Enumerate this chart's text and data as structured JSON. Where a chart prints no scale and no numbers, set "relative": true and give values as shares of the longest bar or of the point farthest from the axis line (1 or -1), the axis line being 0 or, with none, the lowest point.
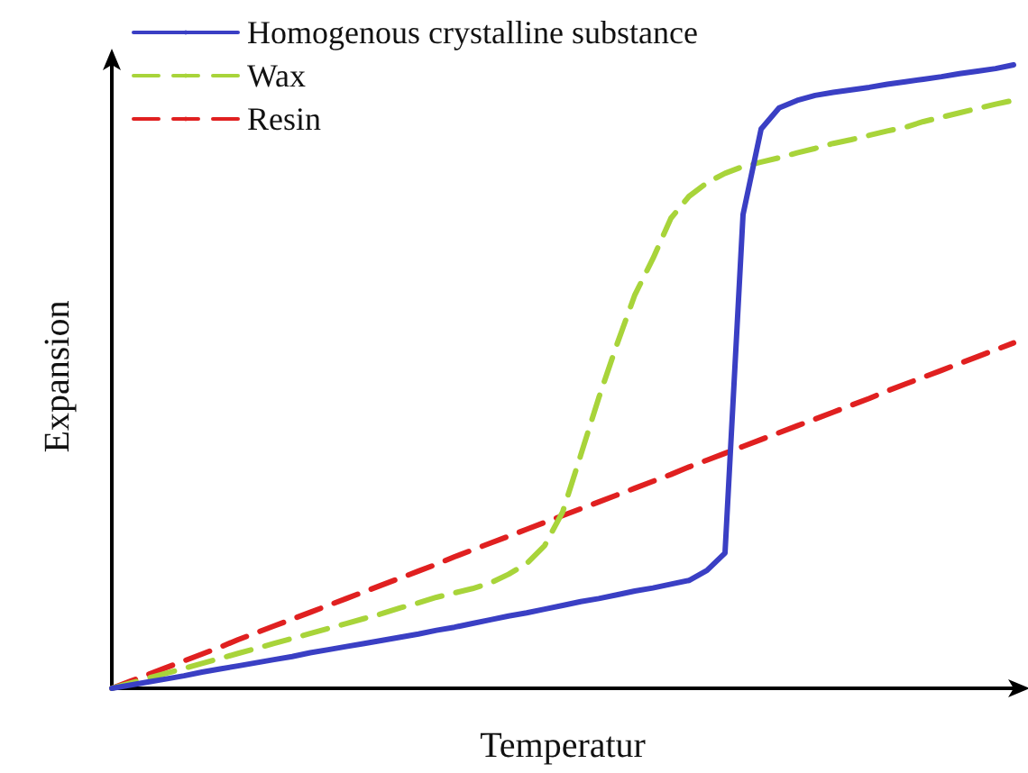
{
  "chart_data": {
    "type": "line",
    "relative": true,
    "xlabel": "Temperatur",
    "ylabel": "Expansion",
    "legend": "top left",
    "marker": "none",
    "grid": false,
    "categories": [
      null,
      null,
      null,
      null,
      null,
      null,
      null,
      null,
      null,
      null,
      null,
      null,
      null,
      null,
      null,
      null,
      null,
      null,
      null,
      null,
      null,
      null,
      null,
      null,
      null,
      null,
      null,
      null,
      null,
      null,
      null,
      null,
      null,
      null,
      null,
      null,
      null,
      null,
      null,
      null,
      null,
      null,
      null,
      null,
      null,
      null,
      null,
      null,
      null,
      null,
      null
    ],
    "series": [
      {
        "name": "Homogenous crystalline substance",
        "color": "#3a3fc4",
        "line_style": "solid",
        "values": [
          0,
          0.005,
          0.01,
          0.015,
          0.02,
          0.026,
          0.031,
          0.036,
          0.041,
          0.046,
          0.051,
          0.057,
          0.062,
          0.067,
          0.072,
          0.077,
          0.082,
          0.087,
          0.093,
          0.098,
          0.104,
          0.11,
          0.116,
          0.121,
          0.127,
          0.133,
          0.139,
          0.144,
          0.15,
          0.156,
          0.161,
          0.167,
          0.173,
          0.189,
          0.217,
          0.76,
          0.897,
          0.931,
          0.943,
          0.951,
          0.956,
          0.96,
          0.964,
          0.969,
          0.973,
          0.977,
          0.981,
          0.986,
          0.99,
          0.994,
          1
        ]
      },
      {
        "name": "Wax",
        "color": "#a8d43a",
        "line_style": "dashed",
        "values": [
          0,
          0.008,
          0.016,
          0.024,
          0.032,
          0.04,
          0.048,
          0.056,
          0.064,
          0.072,
          0.08,
          0.088,
          0.096,
          0.104,
          0.112,
          0.12,
          0.129,
          0.137,
          0.146,
          0.153,
          0.16,
          0.169,
          0.183,
          0.2,
          0.229,
          0.283,
          0.374,
          0.466,
          0.551,
          0.631,
          0.689,
          0.754,
          0.789,
          0.811,
          0.826,
          0.837,
          0.844,
          0.851,
          0.859,
          0.866,
          0.874,
          0.88,
          0.887,
          0.894,
          0.9,
          0.909,
          0.916,
          0.923,
          0.93,
          0.937,
          0.943
        ]
      },
      {
        "name": "Resin",
        "color": "#e02020",
        "line_style": "dashed",
        "values": [
          0,
          0.011,
          0.022,
          0.033,
          0.044,
          0.055,
          0.066,
          0.078,
          0.089,
          0.1,
          0.111,
          0.122,
          0.133,
          0.144,
          0.155,
          0.166,
          0.177,
          0.188,
          0.199,
          0.211,
          0.222,
          0.233,
          0.244,
          0.255,
          0.266,
          0.277,
          0.288,
          0.299,
          0.31,
          0.321,
          0.332,
          0.343,
          0.355,
          0.366,
          0.377,
          0.388,
          0.399,
          0.41,
          0.421,
          0.432,
          0.443,
          0.454,
          0.465,
          0.477,
          0.488,
          0.499,
          0.51,
          0.521,
          0.532,
          0.543,
          0.554
        ]
      }
    ]
  }
}
